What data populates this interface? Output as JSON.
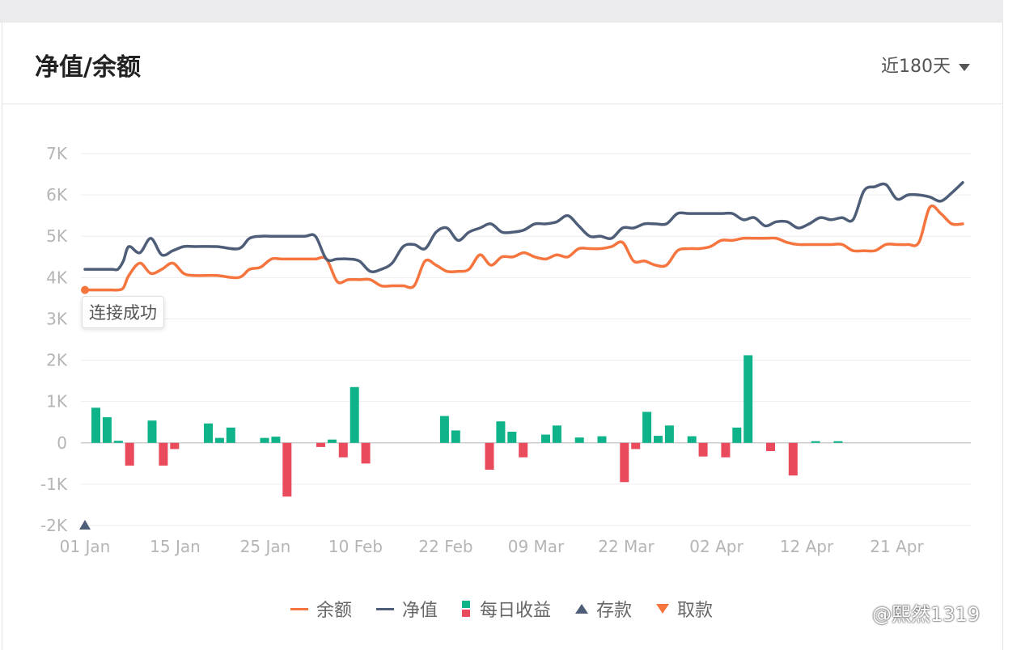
{
  "header": {
    "title": "净值/余额",
    "range_label": "近180天"
  },
  "tooltip": "连接成功",
  "watermark": "@熙然1319",
  "colors": {
    "balance": "#f6743d",
    "nav": "#4f5e78",
    "gain": "#0fb38a",
    "loss": "#e94b5d",
    "grid": "#eeeeee",
    "axis_text": "#b5b5b5"
  },
  "chart_data": {
    "type": "line",
    "title": "",
    "xlabel": "",
    "ylabel": "",
    "ylim": [
      -2000,
      7000
    ],
    "yticks": [
      "-2K",
      "-1K",
      "0",
      "1K",
      "2K",
      "3K",
      "4K",
      "5K",
      "6K",
      "7K"
    ],
    "xticks": [
      "01 Jan",
      "15 Jan",
      "25 Jan",
      "10 Feb",
      "22 Feb",
      "09 Mar",
      "22 Mar",
      "02 Apr",
      "12 Apr",
      "21 Apr"
    ],
    "x_range": [
      0,
      80
    ],
    "grid": true,
    "legend_position": "bottom",
    "series": [
      {
        "name": "余额",
        "kind": "line",
        "color": "#f6743d",
        "x": [
          0,
          2,
          2.5,
          3,
          3.5,
          4,
          5,
          6,
          7,
          8,
          9,
          10,
          12,
          14,
          15,
          16,
          17,
          18,
          20,
          21,
          22,
          23,
          24,
          25,
          26,
          27,
          28,
          29,
          30,
          31,
          32,
          33,
          34,
          35,
          36,
          37,
          38,
          39,
          40,
          41,
          42,
          43,
          44,
          45,
          46,
          47,
          48,
          49,
          50,
          51,
          52,
          53,
          54,
          55,
          56,
          57,
          58,
          59,
          60,
          61,
          62,
          63,
          64,
          65,
          66,
          67,
          68,
          69,
          70,
          71,
          72,
          73,
          74,
          75,
          76,
          77,
          78,
          79,
          80
        ],
        "y": [
          3700,
          3700,
          3700,
          3700,
          3750,
          4050,
          4350,
          4100,
          4200,
          4350,
          4100,
          4050,
          4050,
          4000,
          4200,
          4250,
          4450,
          4450,
          4450,
          4450,
          4450,
          3900,
          3950,
          3950,
          3950,
          3800,
          3800,
          3800,
          3800,
          4400,
          4300,
          4150,
          4150,
          4200,
          4550,
          4300,
          4500,
          4500,
          4600,
          4500,
          4450,
          4550,
          4500,
          4700,
          4700,
          4700,
          4750,
          4850,
          4400,
          4400,
          4300,
          4300,
          4650,
          4700,
          4700,
          4750,
          4900,
          4900,
          4950,
          4950,
          4950,
          4950,
          4850,
          4800,
          4800,
          4800,
          4800,
          4800,
          4650,
          4650,
          4650,
          4800,
          4800,
          4800,
          4850,
          5700,
          5550,
          5300,
          5300
        ]
      },
      {
        "name": "净值",
        "kind": "line",
        "color": "#4f5e78",
        "x": [
          0,
          2,
          2.5,
          3,
          3.5,
          4,
          5,
          6,
          7,
          8,
          9,
          10,
          12,
          14,
          15,
          16,
          17,
          18,
          20,
          21,
          22,
          23,
          24,
          25,
          26,
          27,
          28,
          29,
          30,
          31,
          32,
          33,
          34,
          35,
          36,
          37,
          38,
          39,
          40,
          41,
          42,
          43,
          44,
          45,
          46,
          47,
          48,
          49,
          50,
          51,
          52,
          53,
          54,
          55,
          56,
          57,
          58,
          59,
          60,
          61,
          62,
          63,
          64,
          65,
          66,
          67,
          68,
          69,
          70,
          71,
          72,
          73,
          74,
          75,
          76,
          77,
          78,
          79,
          80
        ],
        "y": [
          4200,
          4200,
          4200,
          4200,
          4400,
          4750,
          4600,
          4950,
          4550,
          4650,
          4750,
          4750,
          4750,
          4700,
          4950,
          5000,
          5000,
          5000,
          5000,
          5000,
          4450,
          4450,
          4450,
          4400,
          4150,
          4200,
          4350,
          4750,
          4800,
          4700,
          5100,
          5200,
          4900,
          5100,
          5200,
          5300,
          5100,
          5100,
          5150,
          5300,
          5300,
          5350,
          5500,
          5250,
          5000,
          5000,
          4950,
          5200,
          5200,
          5300,
          5300,
          5300,
          5550,
          5550,
          5550,
          5550,
          5550,
          5550,
          5400,
          5450,
          5250,
          5350,
          5350,
          5200,
          5300,
          5450,
          5400,
          5450,
          5400,
          6100,
          6200,
          6250,
          5900,
          6000,
          6000,
          5950,
          5850,
          6050,
          6300
        ]
      },
      {
        "name": "每日收益",
        "kind": "bar",
        "pos_color": "#0fb38a",
        "neg_color": "#e94b5d",
        "x": [
          1,
          2,
          3,
          4,
          6,
          7,
          8,
          11,
          12,
          13,
          16,
          17,
          18,
          21,
          22,
          23,
          24,
          25,
          32,
          33,
          36,
          37,
          38,
          39,
          41,
          42,
          44,
          46,
          48,
          49,
          50,
          51,
          52,
          54,
          55,
          57,
          58,
          59,
          61,
          63,
          65,
          67,
          69,
          70,
          71,
          72,
          73,
          74,
          78,
          79,
          81,
          82
        ],
        "values": [
          850,
          620,
          50,
          -550,
          540,
          -550,
          -150,
          470,
          120,
          370,
          120,
          150,
          -1300,
          -100,
          80,
          -350,
          1350,
          -500,
          650,
          300,
          -650,
          520,
          270,
          -350,
          200,
          420,
          130,
          160,
          -950,
          -150,
          750,
          170,
          420,
          160,
          -330,
          -350,
          370,
          2120,
          -200,
          -790,
          40,
          40,
          0,
          0,
          0,
          0,
          0,
          0,
          0,
          0,
          0,
          0
        ]
      },
      {
        "name": "存款",
        "kind": "marker-up",
        "color": "#4f5e78",
        "x": [
          0
        ],
        "values": [
          -2000
        ]
      },
      {
        "name": "取款",
        "kind": "marker-down",
        "color": "#f6743d",
        "x": [],
        "values": []
      }
    ]
  },
  "legend": [
    {
      "label": "余额"
    },
    {
      "label": "净值"
    },
    {
      "label": "每日收益"
    },
    {
      "label": "存款"
    },
    {
      "label": "取款"
    }
  ]
}
